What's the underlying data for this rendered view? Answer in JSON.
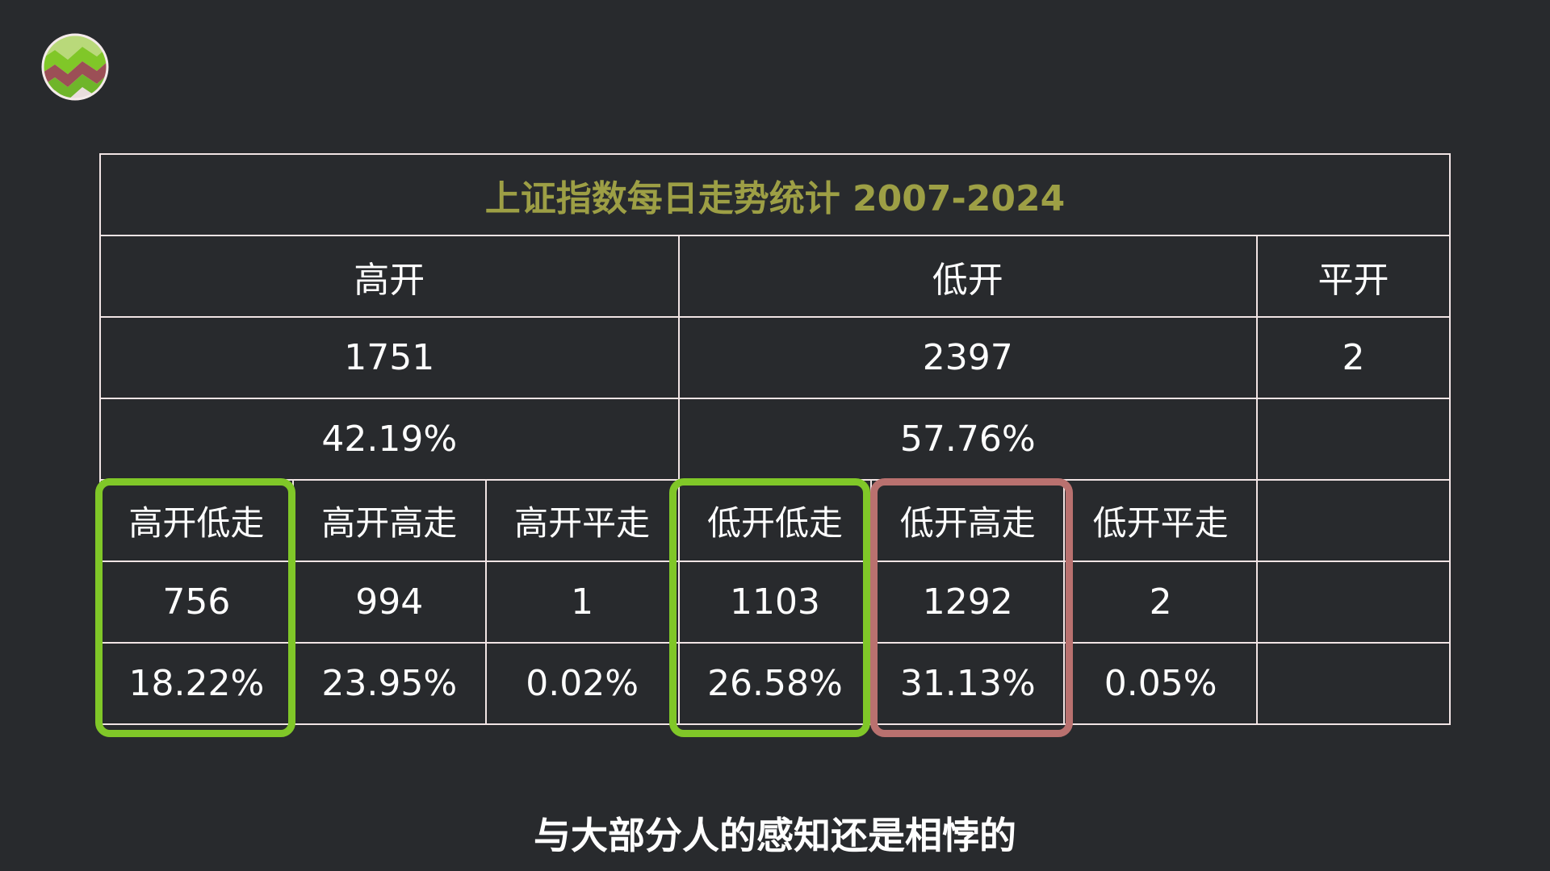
{
  "table": {
    "title": "上证指数每日走势统计 2007-2024",
    "groups": {
      "gao_kai": "高开",
      "di_kai": "低开",
      "ping_kai": "平开"
    },
    "group_counts": {
      "gao_kai": "1751",
      "di_kai": "2397",
      "ping_kai": "2"
    },
    "group_pcts": {
      "gao_kai": "42.19%",
      "di_kai": "57.76%"
    },
    "subcategories": [
      {
        "label": "高开低走",
        "count": "756",
        "pct": "18.22%"
      },
      {
        "label": "高开高走",
        "count": "994",
        "pct": "23.95%"
      },
      {
        "label": "高开平走",
        "count": "1",
        "pct": "0.02%"
      },
      {
        "label": "低开低走",
        "count": "1103",
        "pct": "26.58%"
      },
      {
        "label": "低开高走",
        "count": "1292",
        "pct": "31.13%"
      },
      {
        "label": "低开平走",
        "count": "2",
        "pct": "0.05%"
      }
    ]
  },
  "highlight_colors": {
    "green": "#80c728",
    "red": "#b9716f"
  },
  "logo": {
    "icon": "zigzag-chart-logo-icon"
  },
  "subtitle": "与大部分人的感知还是相悖的"
}
